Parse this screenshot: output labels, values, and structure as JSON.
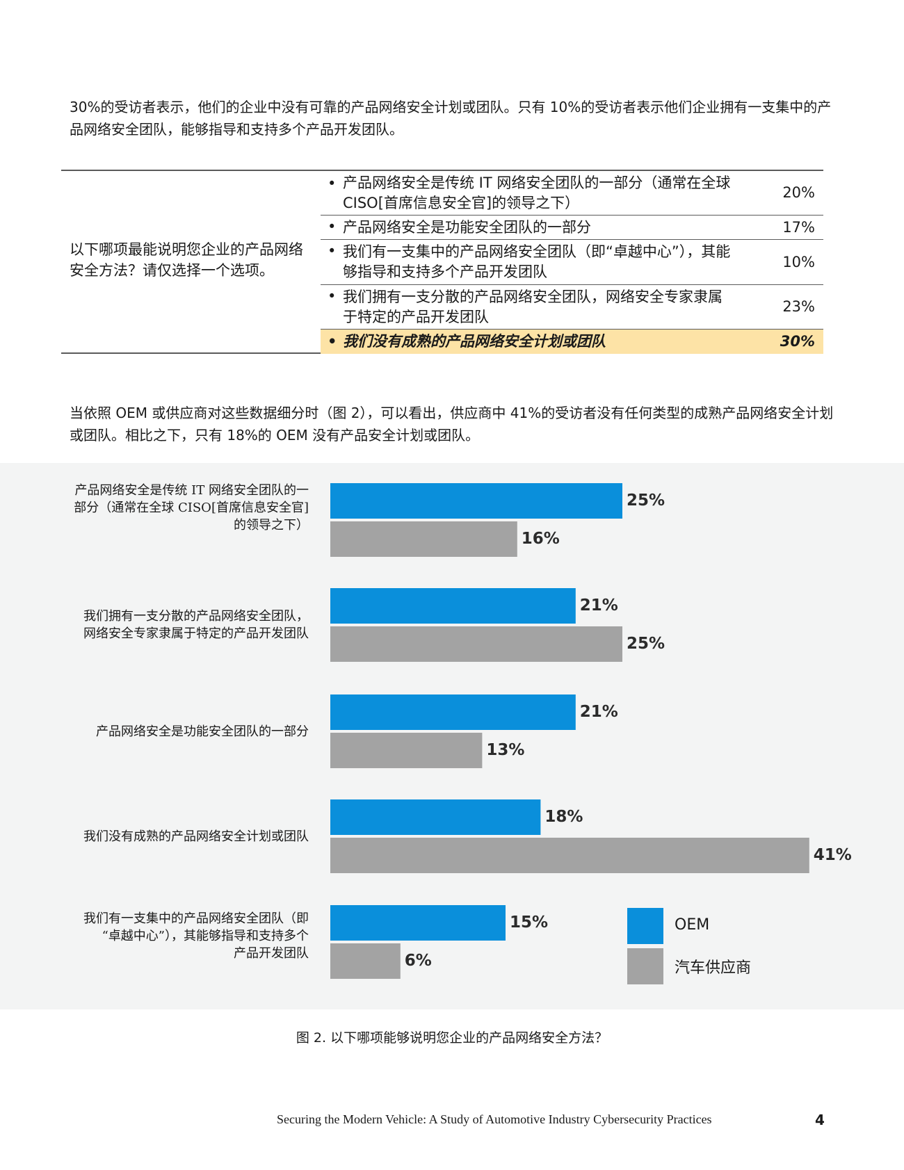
{
  "intro_paragraph": "30%的受访者表示，他们的企业中没有可靠的产品网络安全计划或团队。只有 10%的受访者表示他们企业拥有一支集中的产品网络安全团队，能够指导和支持多个产品开发团队。",
  "survey": {
    "question": "以下哪项最能说明您企业的产品网络安全方法？请仅选择一个选项。",
    "bullet": "•",
    "options": [
      {
        "text": "产品网络安全是传统 IT 网络安全团队的一部分（通常在全球 CISO[首席信息安全官]的领导之下）",
        "percent": "20%"
      },
      {
        "text": "产品网络安全是功能安全团队的一部分",
        "percent": "17%"
      },
      {
        "text": "我们有一支集中的产品网络安全团队（即“卓越中心”），其能够指导和支持多个产品开发团队",
        "percent": "10%"
      },
      {
        "text": "我们拥有一支分散的产品网络安全团队，网络安全专家隶属于特定的产品开发团队",
        "percent": "23%"
      },
      {
        "text": "我们没有成熟的产品网络安全计划或团队",
        "percent": "30%"
      }
    ],
    "highlight_color": "#fde3a6"
  },
  "second_paragraph": "当依照 OEM 或供应商对这些数据细分时（图 2），可以看出，供应商中 41%的受访者没有任何类型的成熟产品网络安全计划或团队。相比之下，只有 18%的 OEM 没有产品安全计划或团队。",
  "chart_data": {
    "type": "bar",
    "orientation": "horizontal",
    "categories": [
      "产品网络安全是传统 IT 网络安全团队的一部分（通常在全球 CISO[首席信息安全官]的领导之下）",
      "我们拥有一支分散的产品网络安全团队，网络安全专家隶属于特定的产品开发团队",
      "产品网络安全是功能安全团队的一部分",
      "我们没有成熟的产品网络安全计划或团队",
      "我们有一支集中的产品网络安全团队（即“卓越中心”），其能够指导和支持多个产品开发团队"
    ],
    "category_label_lines": [
      [
        "产品网络安全是传统 IT 网络安全团队的一",
        "部分（通常在全球 CISO[首席信息安全官]",
        "的领导之下）"
      ],
      [
        "我们拥有一支分散的产品网络安全团队，",
        "网络安全专家隶属于特定的产品开发团队"
      ],
      [
        "产品网络安全是功能安全团队的一部分"
      ],
      [
        "我们没有成熟的产品网络安全计划或团队"
      ],
      [
        "我们有一支集中的产品网络安全团队（即",
        "“卓越中心”），其能够指导和支持多个",
        "产品开发团队"
      ]
    ],
    "series": [
      {
        "name": "OEM",
        "values": [
          25,
          21,
          21,
          18,
          15
        ],
        "color": "#0a8fdb"
      },
      {
        "name": "汽车供应商",
        "values": [
          16,
          25,
          13,
          41,
          6
        ],
        "color": "#a3a3a3"
      }
    ],
    "value_suffix": "%",
    "xlim": [
      0,
      41
    ],
    "grid": false,
    "legend_position": "bottom-right",
    "caption": "图 2. 以下哪项能够说明您企业的产品网络安全方法？"
  },
  "footer": {
    "title": "Securing the Modern Vehicle: A Study of Automotive Industry Cybersecurity Practices",
    "page_number": "4"
  }
}
